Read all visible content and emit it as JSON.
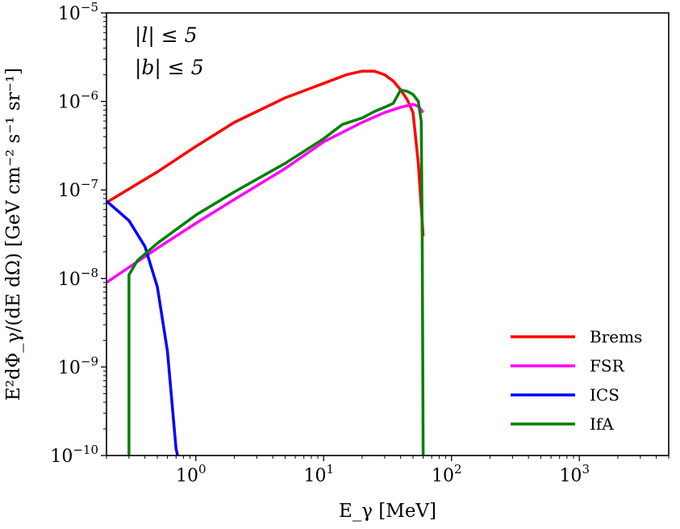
{
  "chart_data": {
    "type": "line",
    "title": "",
    "xscale": "log",
    "yscale": "log",
    "xlim": [
      0.2,
      5000
    ],
    "ylim": [
      1e-10,
      1e-05
    ],
    "xlabel": "E_γ [MeV]",
    "ylabel": "E²dΦ_γ/(dE dΩ) [GeV cm⁻² s⁻¹ sr⁻¹]",
    "x_ticks": [
      {
        "value": 1,
        "base": "10",
        "exp": "0"
      },
      {
        "value": 10,
        "base": "10",
        "exp": "1"
      },
      {
        "value": 100,
        "base": "10",
        "exp": "2"
      },
      {
        "value": 1000,
        "base": "10",
        "exp": "3"
      }
    ],
    "y_ticks": [
      {
        "value": 1e-10,
        "base": "10",
        "exp": "−10"
      },
      {
        "value": 1e-09,
        "base": "10",
        "exp": "−9"
      },
      {
        "value": 1e-08,
        "base": "10",
        "exp": "−8"
      },
      {
        "value": 1e-07,
        "base": "10",
        "exp": "−7"
      },
      {
        "value": 1e-06,
        "base": "10",
        "exp": "−6"
      },
      {
        "value": 1e-05,
        "base": "10",
        "exp": "−5"
      }
    ],
    "annotations": [
      "|l| ≤ 5",
      "|b| ≤ 5"
    ],
    "legend_position": "lower-right",
    "series": [
      {
        "name": "Brems",
        "color": "#ff0000",
        "points": [
          [
            0.2,
            7.2e-08
          ],
          [
            0.5,
            1.6e-07
          ],
          [
            1,
            3.1e-07
          ],
          [
            2,
            5.8e-07
          ],
          [
            5,
            1.1e-06
          ],
          [
            10,
            1.6e-06
          ],
          [
            15,
            2e-06
          ],
          [
            20,
            2.2e-06
          ],
          [
            25,
            2.2e-06
          ],
          [
            30,
            2e-06
          ],
          [
            35,
            1.7e-06
          ],
          [
            40,
            1.35e-06
          ],
          [
            45,
            1.05e-06
          ],
          [
            50,
            7.5e-07
          ],
          [
            55,
            2e-07
          ],
          [
            60,
            3e-08
          ]
        ]
      },
      {
        "name": "FSR",
        "color": "#ff00ff",
        "points": [
          [
            0.2,
            9e-09
          ],
          [
            0.5,
            2.2e-08
          ],
          [
            1,
            4.2e-08
          ],
          [
            2,
            7.8e-08
          ],
          [
            5,
            1.75e-07
          ],
          [
            10,
            3.5e-07
          ],
          [
            20,
            5.8e-07
          ],
          [
            30,
            7.5e-07
          ],
          [
            40,
            8.6e-07
          ],
          [
            50,
            9.3e-07
          ],
          [
            55,
            8.8e-07
          ],
          [
            60,
            7.5e-07
          ]
        ]
      },
      {
        "name": "ICS",
        "color": "#0000ff",
        "points": [
          [
            0.2,
            7.5e-08
          ],
          [
            0.3,
            4.5e-08
          ],
          [
            0.4,
            2.3e-08
          ],
          [
            0.5,
            8e-09
          ],
          [
            0.6,
            1.5e-09
          ],
          [
            0.7,
            1.2e-10
          ],
          [
            0.72,
            1e-10
          ]
        ]
      },
      {
        "name": "IfA",
        "color": "#008000",
        "points": [
          [
            0.3,
            1e-10
          ],
          [
            0.3,
            1.1e-08
          ],
          [
            0.35,
            1.6e-08
          ],
          [
            0.5,
            2.5e-08
          ],
          [
            1,
            5.2e-08
          ],
          [
            2,
            9.5e-08
          ],
          [
            5,
            2e-07
          ],
          [
            10,
            3.8e-07
          ],
          [
            14,
            5.5e-07
          ],
          [
            20,
            6.5e-07
          ],
          [
            25,
            7.7e-07
          ],
          [
            30,
            8.6e-07
          ],
          [
            35,
            9.5e-07
          ],
          [
            40,
            1.35e-06
          ],
          [
            45,
            1.3e-06
          ],
          [
            50,
            1.2e-06
          ],
          [
            55,
            1e-06
          ],
          [
            58,
            6e-07
          ],
          [
            59,
            3e-08
          ],
          [
            60,
            1e-10
          ]
        ]
      }
    ]
  }
}
